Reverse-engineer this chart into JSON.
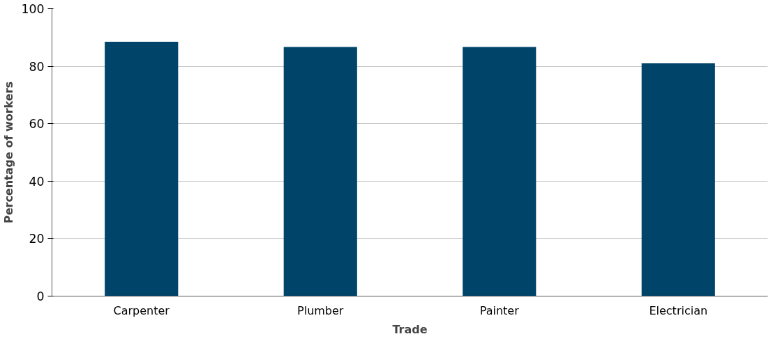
{
  "chart_data": {
    "type": "bar",
    "xlabel": "Trade",
    "ylabel": "Percentage of workers",
    "categories": [
      "Carpenter",
      "Plumber",
      "Painter",
      "Electrician"
    ],
    "values": [
      88.5,
      86.7,
      86.7,
      81
    ],
    "color": "#004469",
    "ylim": [
      0,
      100
    ],
    "yticks": [
      0,
      20,
      40,
      60,
      80,
      100
    ],
    "grid": "y"
  }
}
